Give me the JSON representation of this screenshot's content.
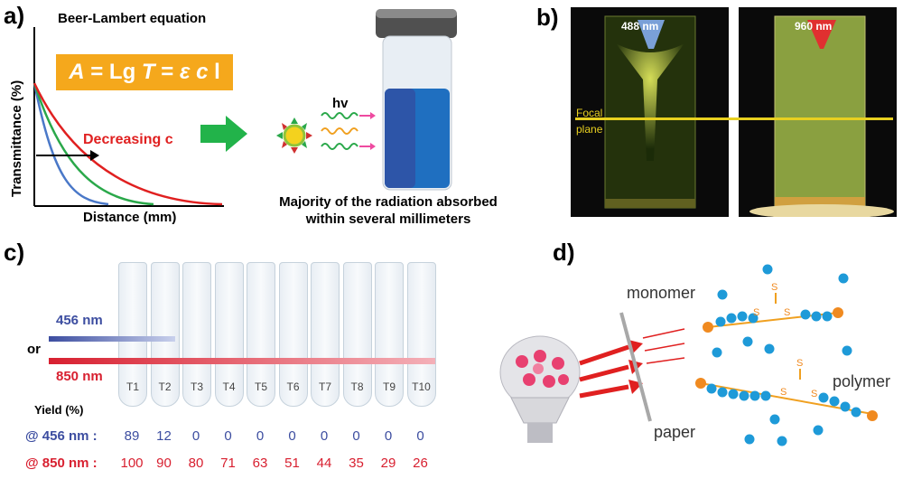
{
  "panels": {
    "a": "a)",
    "b": "b)",
    "c": "c)",
    "d": "d)"
  },
  "panel_a": {
    "title": "Beer-Lambert equation",
    "equation_parts": [
      "A",
      " = Lg ",
      "T",
      " = ",
      "ε c",
      " l"
    ],
    "y_axis_label": "Transmittance (%)",
    "x_axis_label": "Distance (mm)",
    "curve_label": "Decreasing c",
    "hv_label": "hv",
    "caption_line1": "Majority of the radiation absorbed",
    "caption_line2": "within several millimeters",
    "colors": {
      "red": "#e02020",
      "green": "#2aa84a",
      "blue": "#4a78c8",
      "arrow": "#22b34a",
      "liquid": "#1f6fc0"
    }
  },
  "panel_b": {
    "left_wavelength": "488 nm",
    "right_wavelength": "960 nm",
    "focal_label_1": "Focal",
    "focal_label_2": "plane"
  },
  "panel_c": {
    "wl_456": "456 nm",
    "or_label": "or",
    "wl_850": "850 nm",
    "tubes": [
      "T1",
      "T2",
      "T3",
      "T4",
      "T5",
      "T6",
      "T7",
      "T8",
      "T9",
      "T10"
    ],
    "yield_header": "Yield (%)",
    "row_456_label": "@ 456 nm :",
    "row_850_label": "@ 850 nm :",
    "yield_456": [
      "89",
      "12",
      "0",
      "0",
      "0",
      "0",
      "0",
      "0",
      "0",
      "0"
    ],
    "yield_850": [
      "100",
      "90",
      "80",
      "71",
      "63",
      "51",
      "44",
      "35",
      "29",
      "26"
    ]
  },
  "panel_d": {
    "monomer_label": "monomer",
    "paper_label": "paper",
    "polymer_label": "polymer",
    "sulfur": "S"
  }
}
